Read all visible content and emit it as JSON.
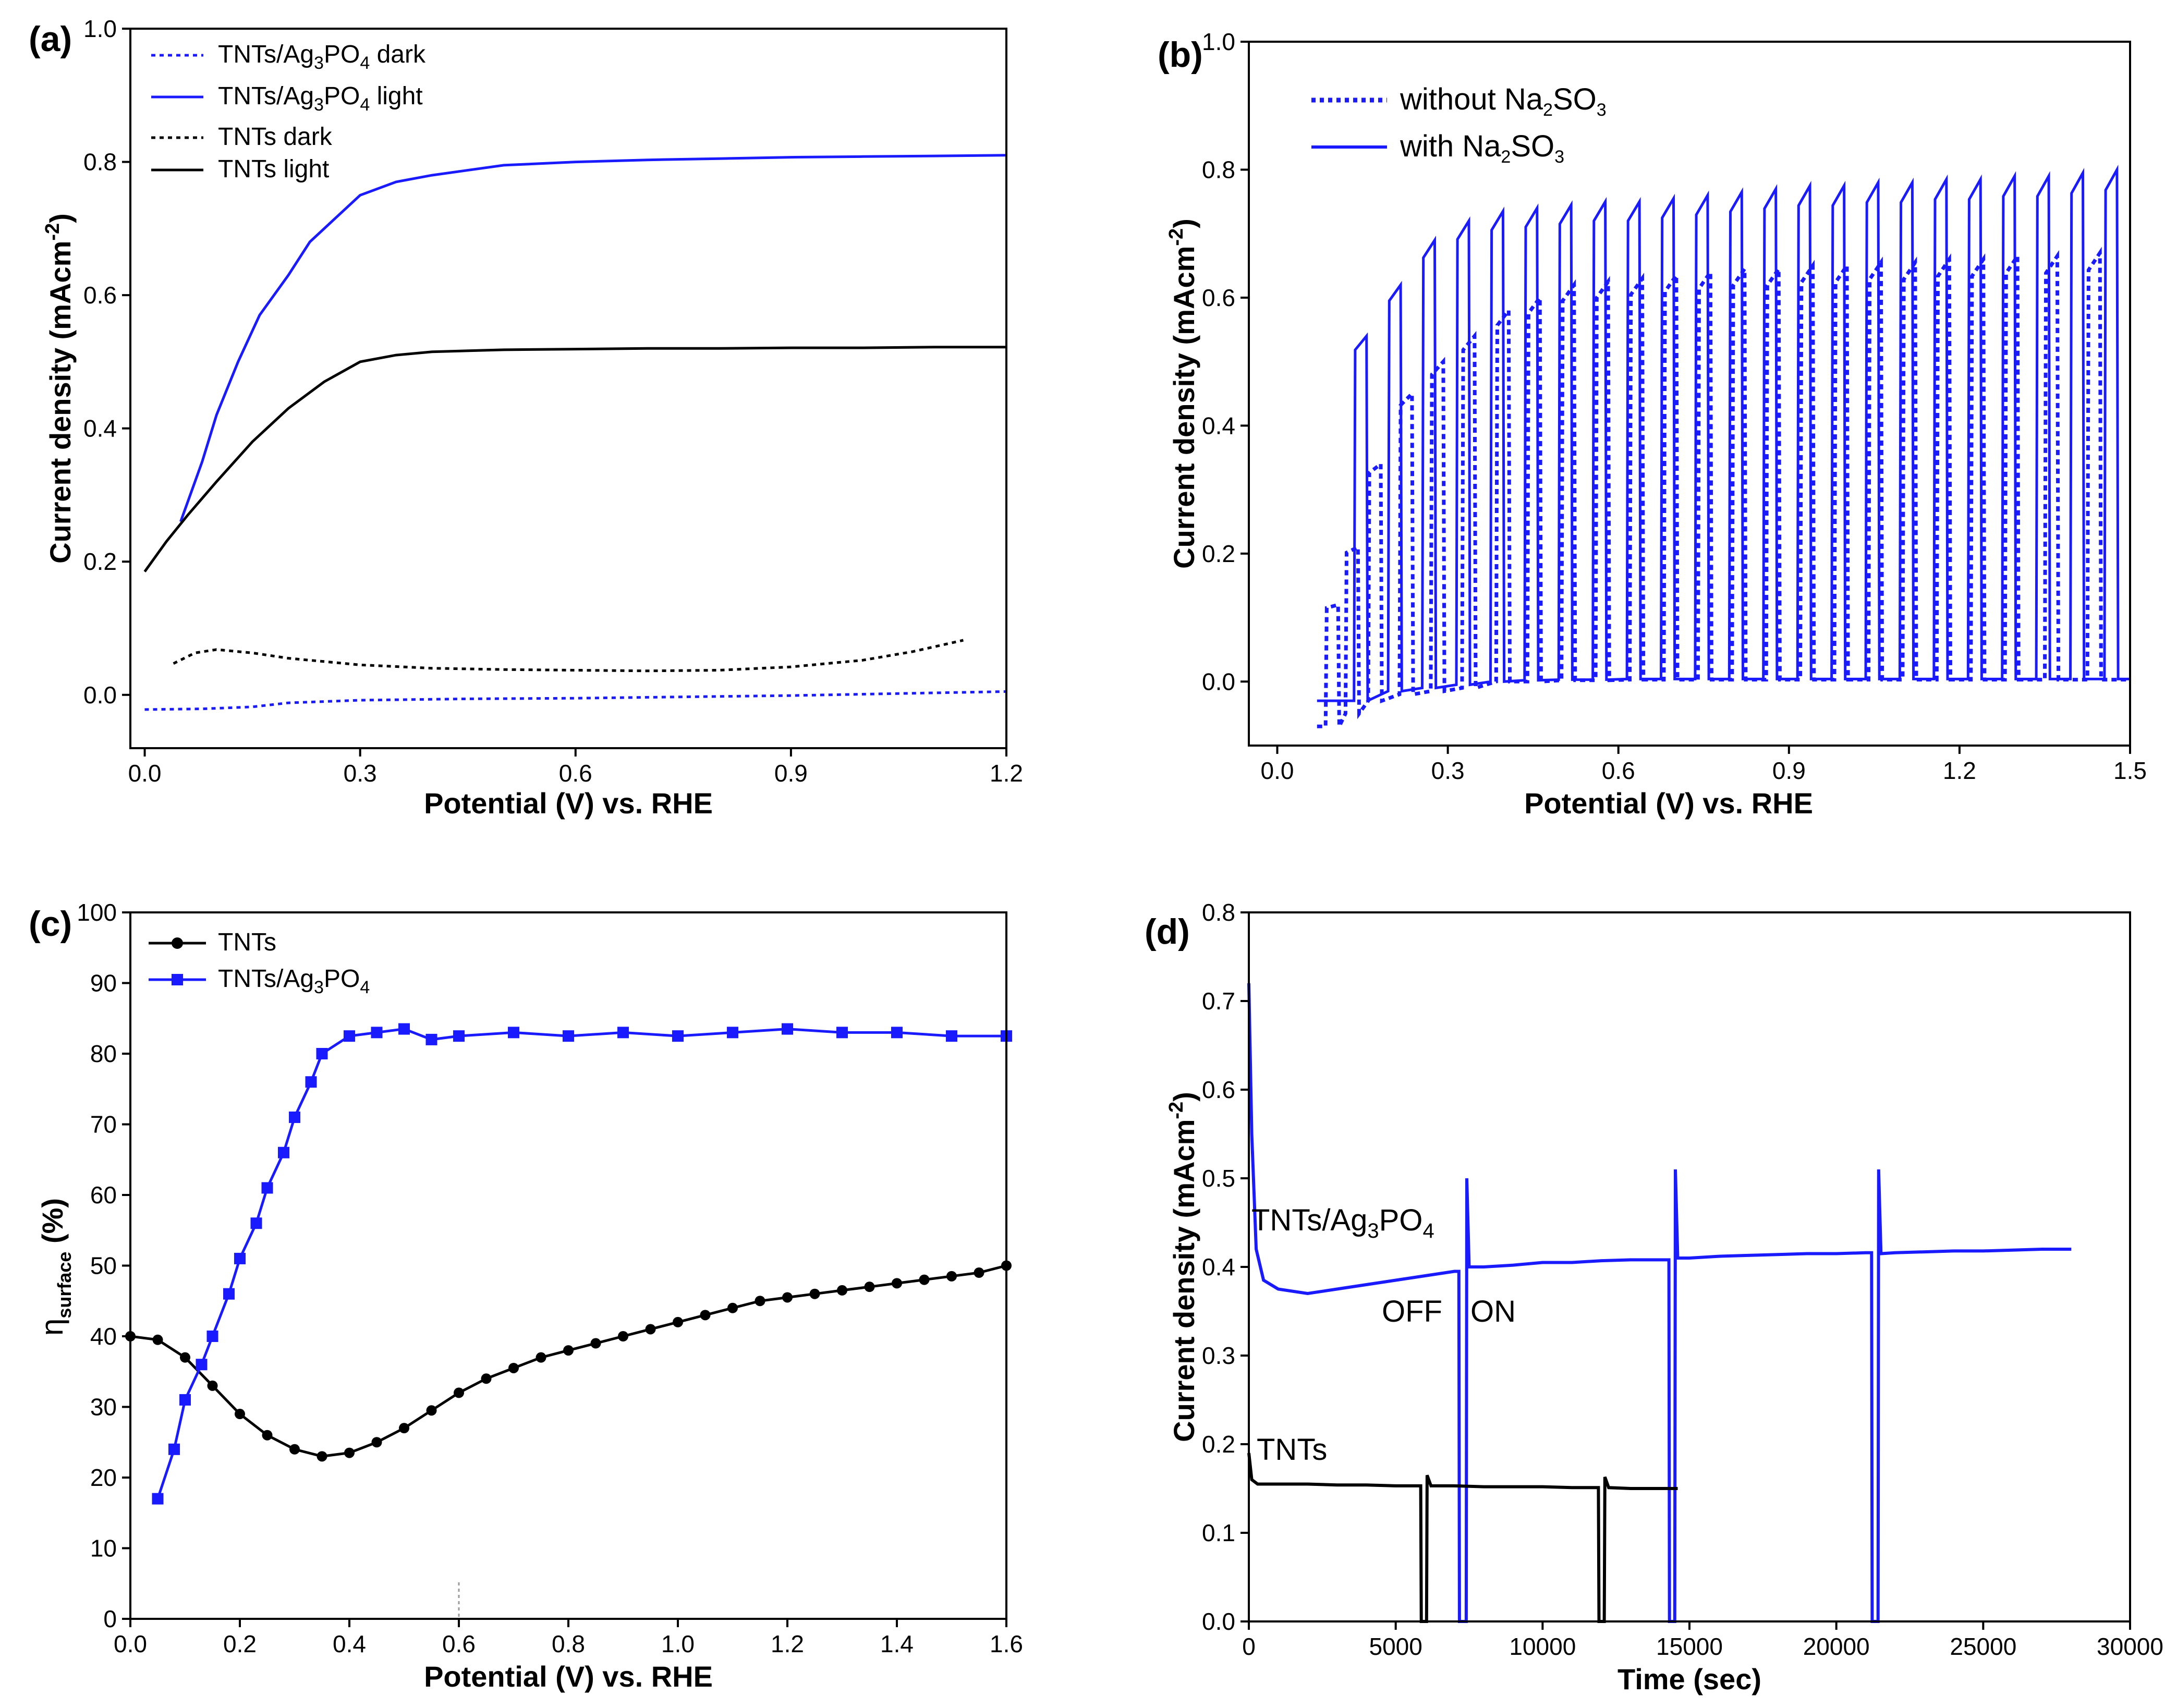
{
  "figure": {
    "panels": [
      "(a)",
      "(b)",
      "(c)",
      "(d)"
    ]
  },
  "chart_data": [
    {
      "panel": "(a)",
      "type": "line",
      "xlabel": "Potential (V) vs. RHE",
      "ylabel": "Current density (mAcm-2)",
      "ylabel_main": "Current density (mAcm",
      "ylabel_sup": "-2",
      "ylabel_close": ")",
      "xlim": [
        -0.02,
        1.2
      ],
      "ylim": [
        -0.08,
        1.0
      ],
      "xticks": [
        0.0,
        0.3,
        0.6,
        0.9,
        1.2
      ],
      "xtick_labels": [
        "0.0",
        "0.3",
        "0.6",
        "0.9",
        "1.2"
      ],
      "yticks": [
        0.0,
        0.2,
        0.4,
        0.6,
        0.8,
        1.0
      ],
      "ytick_labels": [
        "0.0",
        "0.2",
        "0.4",
        "0.6",
        "0.8",
        "1.0"
      ],
      "legend_position": "top-left",
      "series": [
        {
          "name": "TNTs/Ag3PO4 dark",
          "legend_parts": [
            "TNTs/Ag",
            "3",
            "PO",
            "4",
            " dark"
          ],
          "color": "#1a1aff",
          "dash": "dotted",
          "x": [
            0.0,
            0.08,
            0.15,
            0.2,
            0.3,
            0.45,
            0.6,
            0.75,
            0.9,
            1.05,
            1.2
          ],
          "y": [
            -0.022,
            -0.021,
            -0.018,
            -0.012,
            -0.008,
            -0.006,
            -0.005,
            -0.003,
            -0.001,
            0.002,
            0.005
          ]
        },
        {
          "name": "TNTs/Ag3PO4 light",
          "legend_parts": [
            "TNTs/Ag",
            "3",
            "PO",
            "4",
            " light"
          ],
          "color": "#1a1aff",
          "dash": "solid",
          "x": [
            0.05,
            0.08,
            0.1,
            0.13,
            0.16,
            0.2,
            0.23,
            0.27,
            0.3,
            0.35,
            0.4,
            0.5,
            0.6,
            0.7,
            0.8,
            0.9,
            1.0,
            1.1,
            1.2
          ],
          "y": [
            0.26,
            0.35,
            0.42,
            0.5,
            0.57,
            0.63,
            0.68,
            0.72,
            0.75,
            0.77,
            0.78,
            0.795,
            0.8,
            0.803,
            0.805,
            0.807,
            0.808,
            0.809,
            0.81
          ]
        },
        {
          "name": "TNTs dark",
          "legend_parts": [
            "TNTs dark"
          ],
          "color": "#000000",
          "dash": "dotted",
          "x": [
            0.04,
            0.07,
            0.1,
            0.15,
            0.2,
            0.3,
            0.4,
            0.5,
            0.6,
            0.7,
            0.8,
            0.9,
            1.0,
            1.07,
            1.14
          ],
          "y": [
            0.047,
            0.063,
            0.068,
            0.063,
            0.055,
            0.045,
            0.04,
            0.038,
            0.037,
            0.036,
            0.037,
            0.042,
            0.052,
            0.065,
            0.082
          ]
        },
        {
          "name": "TNTs light",
          "legend_parts": [
            "TNTs light"
          ],
          "color": "#000000",
          "dash": "solid",
          "x": [
            0.0,
            0.03,
            0.06,
            0.1,
            0.15,
            0.2,
            0.25,
            0.3,
            0.35,
            0.4,
            0.5,
            0.6,
            0.7,
            0.8,
            0.9,
            1.0,
            1.1,
            1.2
          ],
          "y": [
            0.185,
            0.23,
            0.27,
            0.32,
            0.38,
            0.43,
            0.47,
            0.5,
            0.51,
            0.515,
            0.518,
            0.519,
            0.52,
            0.52,
            0.521,
            0.521,
            0.522,
            0.522
          ]
        }
      ]
    },
    {
      "panel": "(b)",
      "type": "line",
      "xlabel": "Potential (V) vs. RHE",
      "ylabel": "Current density (mAcm-2)",
      "ylabel_main": "Current density (mAcm",
      "ylabel_sup": "-2",
      "ylabel_close": ")",
      "xlim": [
        -0.05,
        1.5
      ],
      "ylim": [
        -0.1,
        1.0
      ],
      "xticks": [
        0.0,
        0.3,
        0.6,
        0.9,
        1.2,
        1.5
      ],
      "xtick_labels": [
        "0.0",
        "0.3",
        "0.6",
        "0.9",
        "1.2",
        "1.5"
      ],
      "yticks": [
        0.0,
        0.2,
        0.4,
        0.6,
        0.8,
        1.0
      ],
      "ytick_labels": [
        "0.0",
        "0.2",
        "0.4",
        "0.6",
        "0.8",
        "1.0"
      ],
      "legend_position": "top-left",
      "chopped": {
        "start": 0.07,
        "end": 1.5,
        "with_Na2SO3": {
          "on_potentials": [
            0.135,
            0.195,
            0.255,
            0.315,
            0.375,
            0.435,
            0.495,
            0.555,
            0.615,
            0.675,
            0.735,
            0.795,
            0.855,
            0.915,
            0.975,
            1.035,
            1.095,
            1.155,
            1.215,
            1.275,
            1.335,
            1.395,
            1.455
          ],
          "on_width": 0.022,
          "on_peaks": [
            0.54,
            0.62,
            0.69,
            0.72,
            0.735,
            0.74,
            0.745,
            0.75,
            0.75,
            0.755,
            0.76,
            0.765,
            0.77,
            0.775,
            0.775,
            0.78,
            0.78,
            0.785,
            0.785,
            0.79,
            0.79,
            0.795,
            0.8
          ],
          "baseline": [
            -0.03,
            -0.015,
            -0.01,
            -0.005,
            0.0,
            0.002,
            0.003,
            0.003,
            0.004,
            0.004,
            0.004,
            0.004,
            0.004,
            0.004,
            0.004,
            0.004,
            0.004,
            0.004,
            0.004,
            0.004,
            0.004,
            0.004,
            0.004
          ]
        },
        "without_Na2SO3": {
          "on_potentials": [
            0.085,
            0.12,
            0.16,
            0.215,
            0.27,
            0.325,
            0.385,
            0.44,
            0.5,
            0.56,
            0.62,
            0.68,
            0.74,
            0.8,
            0.86,
            0.92,
            0.98,
            1.04,
            1.1,
            1.16,
            1.22,
            1.28,
            1.35,
            1.425
          ],
          "on_width": 0.022,
          "on_peaks": [
            0.12,
            0.21,
            0.34,
            0.45,
            0.5,
            0.54,
            0.58,
            0.6,
            0.62,
            0.625,
            0.63,
            0.635,
            0.64,
            0.645,
            0.645,
            0.65,
            0.65,
            0.655,
            0.655,
            0.66,
            0.66,
            0.665,
            0.665,
            0.67
          ],
          "baseline": [
            -0.07,
            -0.05,
            -0.03,
            -0.02,
            -0.015,
            -0.01,
            0.0,
            0.0,
            0.002,
            0.002,
            0.003,
            0.003,
            0.003,
            0.003,
            0.003,
            0.003,
            0.003,
            0.003,
            0.003,
            0.003,
            0.003,
            0.003,
            0.003,
            0.003
          ]
        }
      },
      "series": [
        {
          "name": "without Na2SO3",
          "legend_parts": [
            "without Na",
            "2",
            "SO",
            "3",
            ""
          ],
          "color": "#1a1aff",
          "dash": "dotted"
        },
        {
          "name": "with Na2SO3",
          "legend_parts": [
            "with Na",
            "2",
            "SO",
            "3",
            ""
          ],
          "color": "#1a1aff",
          "dash": "solid"
        }
      ]
    },
    {
      "panel": "(c)",
      "type": "line",
      "xlabel": "Potential (V) vs. RHE",
      "ylabel": "ηsurface (%)",
      "ylabel_main": "η",
      "ylabel_sub": "surface",
      "ylabel_close": " (%)",
      "xlim": [
        0.0,
        1.6
      ],
      "ylim": [
        0,
        100
      ],
      "xticks": [
        0.0,
        0.2,
        0.4,
        0.6,
        0.8,
        1.0,
        1.2,
        1.4,
        1.6
      ],
      "xtick_labels": [
        "0.0",
        "0.2",
        "0.4",
        "0.6",
        "0.8",
        "1.0",
        "1.2",
        "1.4",
        "1.6"
      ],
      "yticks": [
        0,
        10,
        20,
        30,
        40,
        50,
        60,
        70,
        80,
        90,
        100
      ],
      "ytick_labels": [
        "0",
        "10",
        "20",
        "30",
        "40",
        "50",
        "60",
        "70",
        "80",
        "90",
        "100"
      ],
      "legend_position": "top-left",
      "series": [
        {
          "name": "TNTs",
          "legend_parts": [
            "TNTs"
          ],
          "color": "#000000",
          "marker": "circle",
          "x": [
            0.0,
            0.05,
            0.1,
            0.15,
            0.2,
            0.25,
            0.3,
            0.35,
            0.4,
            0.45,
            0.5,
            0.55,
            0.6,
            0.65,
            0.7,
            0.75,
            0.8,
            0.85,
            0.9,
            0.95,
            1.0,
            1.05,
            1.1,
            1.15,
            1.2,
            1.25,
            1.3,
            1.35,
            1.4,
            1.45,
            1.5,
            1.55,
            1.6
          ],
          "y": [
            40,
            39.5,
            37,
            33,
            29,
            26,
            24,
            23,
            23.5,
            25,
            27,
            29.5,
            32,
            34,
            35.5,
            37,
            38,
            39,
            40,
            41,
            42,
            43,
            44,
            45,
            45.5,
            46,
            46.5,
            47,
            47.5,
            48,
            48.5,
            49,
            50
          ]
        },
        {
          "name": "TNTs/Ag3PO4",
          "legend_parts": [
            "TNTs/Ag",
            "3",
            "PO",
            "4",
            ""
          ],
          "color": "#1a1aff",
          "marker": "square",
          "x": [
            0.05,
            0.08,
            0.1,
            0.13,
            0.15,
            0.18,
            0.2,
            0.23,
            0.25,
            0.28,
            0.3,
            0.33,
            0.35,
            0.4,
            0.45,
            0.5,
            0.55,
            0.6,
            0.7,
            0.8,
            0.9,
            1.0,
            1.1,
            1.2,
            1.3,
            1.4,
            1.5,
            1.6
          ],
          "y": [
            17,
            24,
            31,
            36,
            40,
            46,
            51,
            56,
            61,
            66,
            71,
            76,
            80,
            82.5,
            83,
            83.5,
            82,
            82.5,
            83,
            82.5,
            83,
            82.5,
            83,
            83.5,
            83,
            83,
            82.5,
            82.5
          ]
        }
      ]
    },
    {
      "panel": "(d)",
      "type": "line",
      "xlabel": "Time (sec)",
      "ylabel": "Current density (mAcm-2)",
      "ylabel_main": "Current density (mAcm",
      "ylabel_sup": "-2",
      "ylabel_close": ")",
      "xlim": [
        0,
        30000
      ],
      "ylim": [
        0.0,
        0.8
      ],
      "xticks": [
        0,
        5000,
        10000,
        15000,
        20000,
        25000,
        30000
      ],
      "xtick_labels": [
        "0",
        "5000",
        "10000",
        "15000",
        "20000",
        "25000",
        "30000"
      ],
      "yticks": [
        0.0,
        0.1,
        0.2,
        0.3,
        0.4,
        0.5,
        0.6,
        0.7,
        0.8
      ],
      "ytick_labels": [
        "0.0",
        "0.1",
        "0.2",
        "0.3",
        "0.4",
        "0.5",
        "0.6",
        "0.7",
        "0.8"
      ],
      "annotations": {
        "ag_label_parts": [
          "TNTs/Ag",
          "3",
          "PO",
          "4",
          ""
        ],
        "tnts_label": "TNTs",
        "off_label": "OFF",
        "on_label": "ON"
      },
      "series": [
        {
          "name": "TNTs/Ag3PO4",
          "color": "#1a1aff",
          "x": [
            0,
            100,
            250,
            500,
            1000,
            2000,
            3000,
            4000,
            5000,
            6000,
            7000,
            7150,
            7170,
            7400,
            7420,
            7500,
            8000,
            9000,
            10000,
            11000,
            12000,
            13000,
            14000,
            14300,
            14320,
            14500,
            14520,
            14600,
            15000,
            16000,
            17000,
            18000,
            19000,
            20000,
            21000,
            21200,
            21220,
            21420,
            21440,
            21520,
            22000,
            23000,
            24000,
            25000,
            26000,
            27000,
            28000
          ],
          "y": [
            0.72,
            0.55,
            0.42,
            0.385,
            0.375,
            0.37,
            0.375,
            0.38,
            0.385,
            0.39,
            0.395,
            0.395,
            0.0,
            0.0,
            0.5,
            0.4,
            0.4,
            0.402,
            0.405,
            0.405,
            0.407,
            0.408,
            0.408,
            0.408,
            0.0,
            0.0,
            0.51,
            0.41,
            0.41,
            0.412,
            0.413,
            0.414,
            0.415,
            0.415,
            0.416,
            0.416,
            0.0,
            0.0,
            0.51,
            0.415,
            0.416,
            0.417,
            0.418,
            0.418,
            0.419,
            0.42,
            0.42
          ]
        },
        {
          "name": "TNTs",
          "color": "#000000",
          "x": [
            0,
            100,
            300,
            1000,
            2000,
            3000,
            4000,
            5000,
            5850,
            5870,
            6050,
            6070,
            6200,
            7000,
            8000,
            9000,
            10000,
            11000,
            11900,
            11920,
            12100,
            12120,
            12250,
            13000,
            14000,
            14600
          ],
          "y": [
            0.19,
            0.16,
            0.155,
            0.155,
            0.155,
            0.154,
            0.154,
            0.153,
            0.153,
            0.0,
            0.0,
            0.165,
            0.153,
            0.153,
            0.152,
            0.152,
            0.152,
            0.151,
            0.151,
            0.0,
            0.0,
            0.163,
            0.151,
            0.15,
            0.15,
            0.15
          ]
        }
      ]
    }
  ]
}
